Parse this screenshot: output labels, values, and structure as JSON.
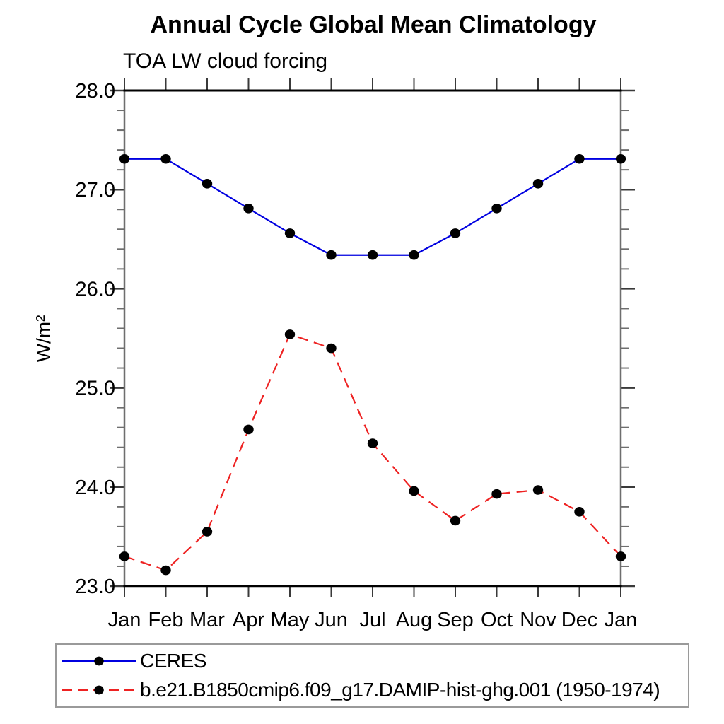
{
  "header": {
    "title": "Annual Cycle Global Mean Climatology",
    "subtitle": "TOA LW cloud forcing"
  },
  "chart_data": {
    "type": "line",
    "title": "Annual Cycle Global Mean Climatology",
    "subtitle": "TOA LW cloud forcing",
    "xlabel": "",
    "ylabel": "W/m²",
    "categories": [
      "Jan",
      "Feb",
      "Mar",
      "Apr",
      "May",
      "Jun",
      "Jul",
      "Aug",
      "Sep",
      "Oct",
      "Nov",
      "Dec",
      "Jan"
    ],
    "series": [
      {
        "name": "CERES",
        "line_style": "solid",
        "color": "#0000e0",
        "marker": "filled-circle",
        "marker_color": "#000000",
        "values": [
          27.31,
          27.31,
          27.06,
          26.81,
          26.56,
          26.34,
          26.34,
          26.34,
          26.56,
          26.81,
          27.06,
          27.31,
          27.31
        ]
      },
      {
        "name": "b.e21.B1850cmip6.f09_g17.DAMIP-hist-ghg.001 (1950-1974)",
        "line_style": "dashed",
        "color": "#ee2222",
        "marker": "filled-circle",
        "marker_color": "#000000",
        "values": [
          23.3,
          23.16,
          23.55,
          24.58,
          25.54,
          25.4,
          24.44,
          23.96,
          23.66,
          23.93,
          23.97,
          23.75,
          23.3
        ]
      }
    ],
    "ylim": [
      23.0,
      28.0
    ],
    "ytick_values": [
      23,
      24,
      25,
      26,
      27,
      28
    ],
    "ytick_labels": [
      "23.0",
      "24.0",
      "25.0",
      "26.0",
      "27.0",
      "28.0"
    ],
    "minor_tick_step": 0.2,
    "grid": false,
    "legend_position": "bottom-left-box",
    "axis_colors": {
      "horizontal": "#000000",
      "vertical": "#6e6e6e",
      "tick": "#3a3a3a"
    }
  }
}
